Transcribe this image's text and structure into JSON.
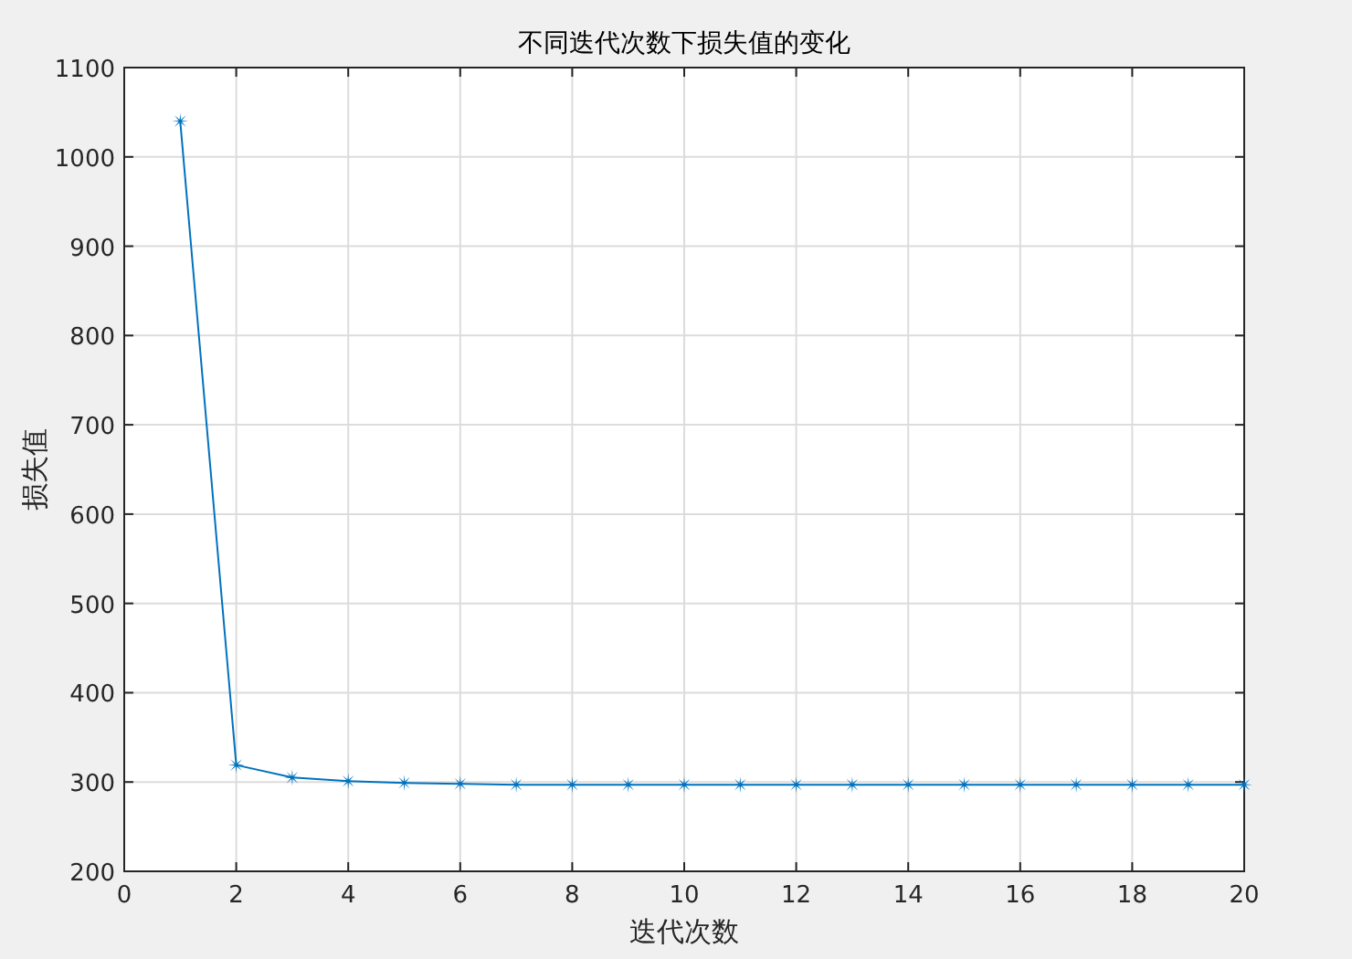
{
  "chart_data": {
    "type": "line",
    "title": "不同迭代次数下损失值的变化",
    "xlabel": "迭代次数",
    "ylabel": "损失值",
    "x": [
      1,
      2,
      3,
      4,
      5,
      6,
      7,
      8,
      9,
      10,
      11,
      12,
      13,
      14,
      15,
      16,
      17,
      18,
      19,
      20
    ],
    "series": [
      {
        "color": "#0072bd",
        "values": [
          1040,
          319,
          305,
          301,
          299,
          298,
          297,
          297,
          297,
          297,
          297,
          297,
          297,
          297,
          297,
          297,
          297,
          297,
          297,
          297
        ]
      }
    ],
    "xlim": [
      0,
      20
    ],
    "xticks": [
      0,
      2,
      4,
      6,
      8,
      10,
      12,
      14,
      16,
      18,
      20
    ],
    "ylim": [
      200,
      1100
    ],
    "yticks": [
      200,
      300,
      400,
      500,
      600,
      700,
      800,
      900,
      1000,
      1100
    ],
    "grid": true,
    "marker": "star",
    "line_style": "solid"
  }
}
